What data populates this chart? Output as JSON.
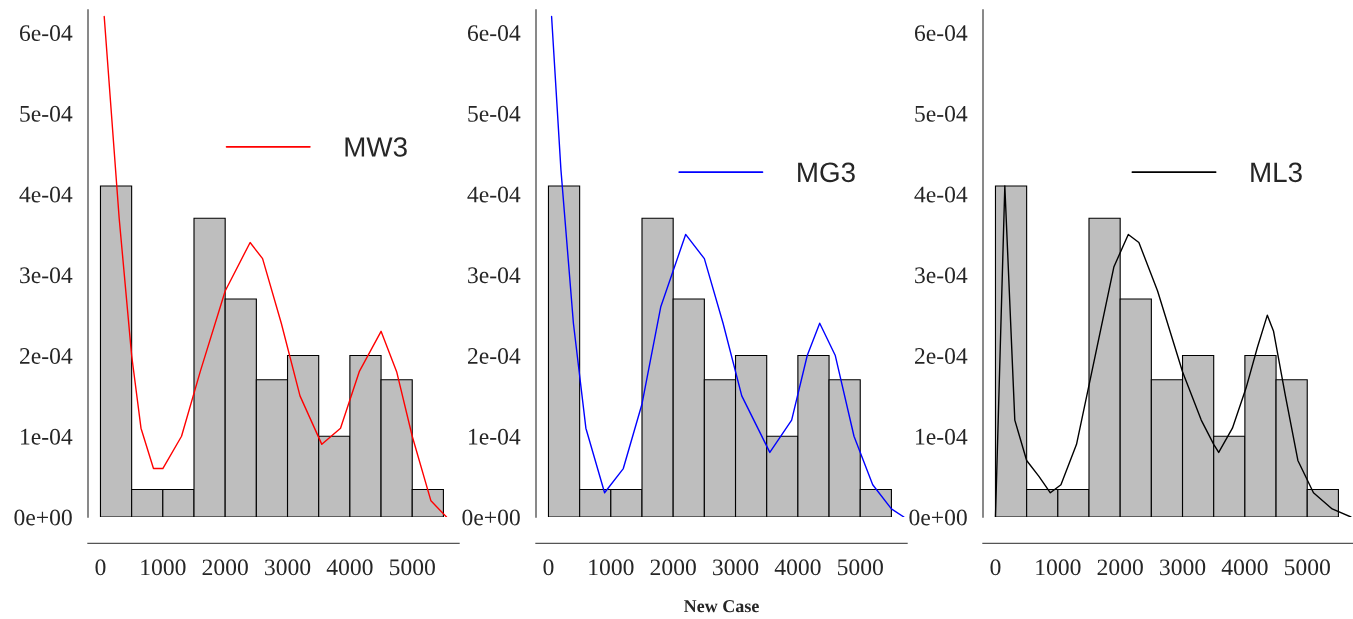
{
  "chart_data": [
    {
      "type": "histogram",
      "bins": [
        0,
        500,
        1000,
        1500,
        2000,
        2500,
        3000,
        3500,
        4000,
        4500,
        5000,
        5500
      ],
      "values": [
        0.00041,
        3.4e-05,
        3.4e-05,
        0.00037,
        0.00027,
        0.00017,
        0.0002,
        0.0001,
        0.0002,
        0.00017,
        3.4e-05
      ],
      "color": "#bebebe",
      "series": [
        {
          "type": "line",
          "name": "MW3",
          "color": "#ff0000",
          "x": [
            60,
            300,
            500,
            650,
            850,
            1000,
            1300,
            1600,
            2000,
            2400,
            2600,
            2900,
            3200,
            3550,
            3850,
            4150,
            4500,
            4750,
            5000,
            5300,
            5550
          ],
          "values": [
            0.00062,
            0.00037,
            0.0002,
            0.00011,
            6e-05,
            6e-05,
            0.0001,
            0.00018,
            0.00028,
            0.00034,
            0.00032,
            0.00024,
            0.00015,
            9e-05,
            0.00011,
            0.00018,
            0.00023,
            0.00018,
            0.0001,
            2e-05,
            0.0
          ]
        }
      ],
      "xlim": [
        -200,
        5750
      ],
      "ylim": [
        0,
        0.000628
      ],
      "xticks": [
        0,
        1000,
        2000,
        3000,
        4000,
        5000
      ],
      "yticks": [
        {
          "value": 0,
          "label": "0e+00"
        },
        {
          "value": 0.0001,
          "label": "1e-04"
        },
        {
          "value": 0.0002,
          "label": "2e-04"
        },
        {
          "value": 0.0003,
          "label": "3e-04"
        },
        {
          "value": 0.0004,
          "label": "4e-04"
        },
        {
          "value": 0.0005,
          "label": "5e-04"
        },
        {
          "value": 0.0006,
          "label": "6e-04"
        }
      ],
      "legend": "top right"
    },
    {
      "type": "histogram",
      "bins": [
        0,
        500,
        1000,
        1500,
        2000,
        2500,
        3000,
        3500,
        4000,
        4500,
        5000,
        5500
      ],
      "values": [
        0.00041,
        3.4e-05,
        3.4e-05,
        0.00037,
        0.00027,
        0.00017,
        0.0002,
        0.0001,
        0.0002,
        0.00017,
        3.4e-05
      ],
      "color": "#bebebe",
      "xlabel": "New Case",
      "series": [
        {
          "type": "line",
          "name": "MG3",
          "color": "#0000ff",
          "x": [
            50,
            200,
            400,
            600,
            900,
            1200,
            1500,
            1800,
            2200,
            2500,
            2800,
            3100,
            3550,
            3900,
            4150,
            4350,
            4600,
            4900,
            5200,
            5500,
            5700
          ],
          "values": [
            0.00062,
            0.00043,
            0.00024,
            0.00011,
            3e-05,
            6e-05,
            0.00014,
            0.00026,
            0.00035,
            0.00032,
            0.00024,
            0.00015,
            8e-05,
            0.00012,
            0.0002,
            0.00024,
            0.0002,
            0.0001,
            4e-05,
            1e-05,
            0.0
          ]
        }
      ],
      "xlim": [
        -200,
        5750
      ],
      "ylim": [
        0,
        0.000628
      ],
      "xticks": [
        0,
        1000,
        2000,
        3000,
        4000,
        5000
      ],
      "yticks": [
        {
          "value": 0,
          "label": "0e+00"
        },
        {
          "value": 0.0001,
          "label": "1e-04"
        },
        {
          "value": 0.0002,
          "label": "2e-04"
        },
        {
          "value": 0.0003,
          "label": "3e-04"
        },
        {
          "value": 0.0004,
          "label": "4e-04"
        },
        {
          "value": 0.0005,
          "label": "5e-04"
        },
        {
          "value": 0.0006,
          "label": "6e-04"
        }
      ],
      "legend": "top right"
    },
    {
      "type": "histogram",
      "bins": [
        0,
        500,
        1000,
        1500,
        2000,
        2500,
        3000,
        3500,
        4000,
        4500,
        5000,
        5500
      ],
      "values": [
        0.00041,
        3.4e-05,
        3.4e-05,
        0.00037,
        0.00027,
        0.00017,
        0.0002,
        0.0001,
        0.0002,
        0.00017,
        3.4e-05
      ],
      "color": "#bebebe",
      "series": [
        {
          "type": "line",
          "name": "ML3",
          "color": "#000000",
          "x": [
            0,
            150,
            310,
            500,
            700,
            880,
            1050,
            1300,
            1600,
            1900,
            2130,
            2300,
            2600,
            3000,
            3300,
            3500,
            3580,
            3800,
            4020,
            4200,
            4360,
            4460,
            4650,
            4850,
            5100,
            5400,
            5700
          ],
          "values": [
            0.0,
            0.00041,
            0.00012,
            7e-05,
            5e-05,
            3e-05,
            4e-05,
            9e-05,
            0.0002,
            0.00031,
            0.00035,
            0.00034,
            0.00028,
            0.00018,
            0.00012,
            9e-05,
            8e-05,
            0.00011,
            0.00016,
            0.00021,
            0.00025,
            0.00023,
            0.00015,
            7e-05,
            3e-05,
            1e-05,
            0.0
          ]
        }
      ],
      "xlim": [
        -200,
        5750
      ],
      "ylim": [
        0,
        0.000628
      ],
      "xticks": [
        0,
        1000,
        2000,
        3000,
        4000,
        5000
      ],
      "yticks": [
        {
          "value": 0,
          "label": "0e+00"
        },
        {
          "value": 0.0001,
          "label": "1e-04"
        },
        {
          "value": 0.0002,
          "label": "2e-04"
        },
        {
          "value": 0.0003,
          "label": "3e-04"
        },
        {
          "value": 0.0004,
          "label": "4e-04"
        },
        {
          "value": 0.0005,
          "label": "5e-04"
        },
        {
          "value": 0.0006,
          "label": "6e-04"
        }
      ],
      "legend": "top right"
    }
  ]
}
